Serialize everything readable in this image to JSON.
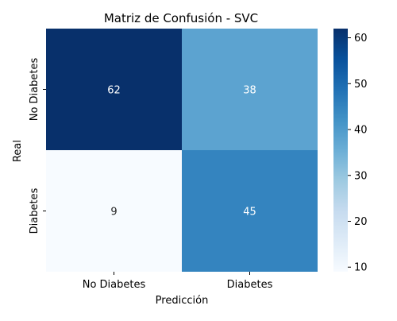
{
  "chart_data": {
    "type": "heatmap",
    "title": "Matriz de Confusión - SVC",
    "xlabel": "Predicción",
    "ylabel": "Real",
    "x_categories": [
      "No Diabetes",
      "Diabetes"
    ],
    "y_categories": [
      "No Diabetes",
      "Diabetes"
    ],
    "values": [
      [
        62,
        38
      ],
      [
        9,
        45
      ]
    ],
    "colormap": "Blues",
    "color_range": [
      9,
      62
    ],
    "colorbar": {
      "ticks": [
        10,
        20,
        30,
        40,
        50,
        60
      ]
    },
    "legend": "none",
    "grid": false
  }
}
